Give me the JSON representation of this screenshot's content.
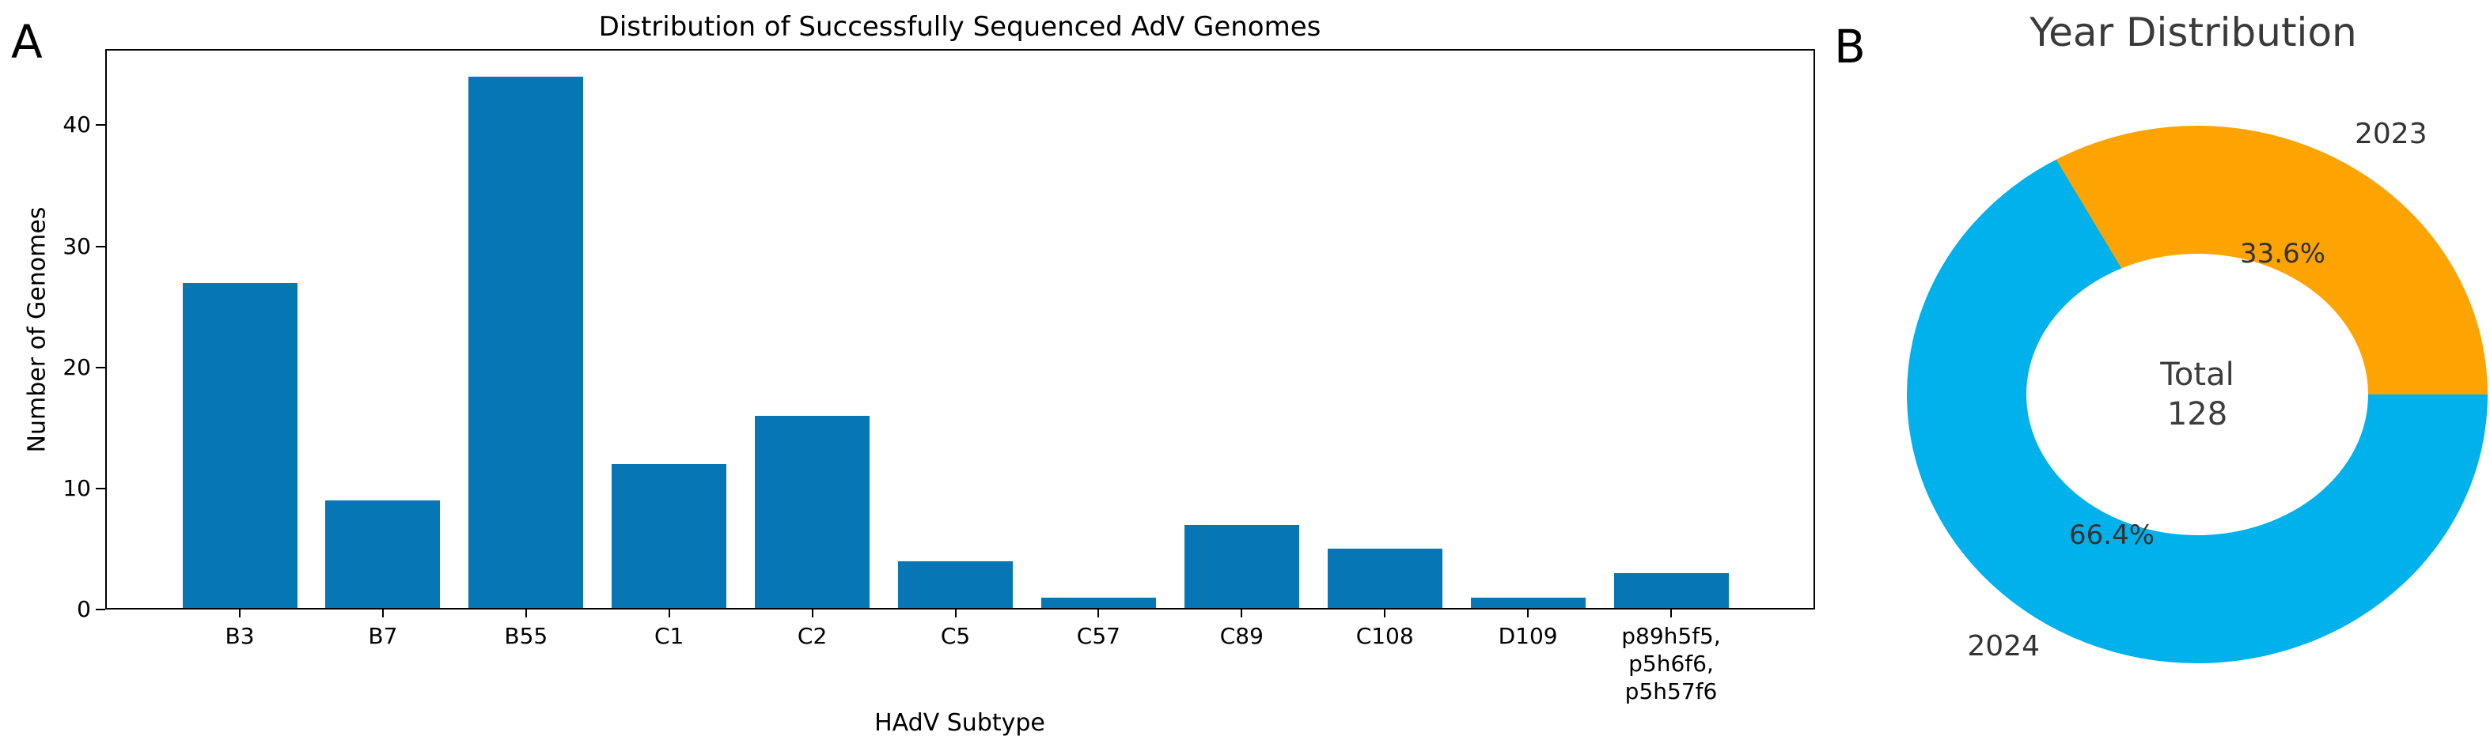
{
  "figure": {
    "panel_labels": [
      "A",
      "B"
    ]
  },
  "chart_data": [
    {
      "type": "bar",
      "panel": "A",
      "title": "Distribution of Successfully Sequenced AdV Genomes",
      "xlabel": "HAdV Subtype",
      "ylabel": "Number of Genomes",
      "categories": [
        "B3",
        "B7",
        "B55",
        "C1",
        "C2",
        "C5",
        "C57",
        "C89",
        "C108",
        "D109",
        "p89h5f5,\np5h6f6,\np5h57f6"
      ],
      "values": [
        27,
        9,
        44,
        12,
        16,
        4,
        1,
        7,
        5,
        1,
        3
      ],
      "yticks": [
        0,
        10,
        20,
        30,
        40
      ],
      "ylim": [
        0,
        46.3
      ],
      "bar_color": "#0676b5",
      "grid": false,
      "legend": null
    },
    {
      "type": "pie",
      "panel": "B",
      "title": "Year Distribution",
      "donut": true,
      "start_angle_deg": 0,
      "counterclockwise": true,
      "center_label": "Total",
      "center_value": "128",
      "slices": [
        {
          "label": "2023",
          "value_pct": 33.6,
          "pct_text": "33.6%",
          "color": "#fda403"
        },
        {
          "label": "2024",
          "value_pct": 66.4,
          "pct_text": "66.4%",
          "color": "#00b1eb"
        }
      ]
    }
  ]
}
